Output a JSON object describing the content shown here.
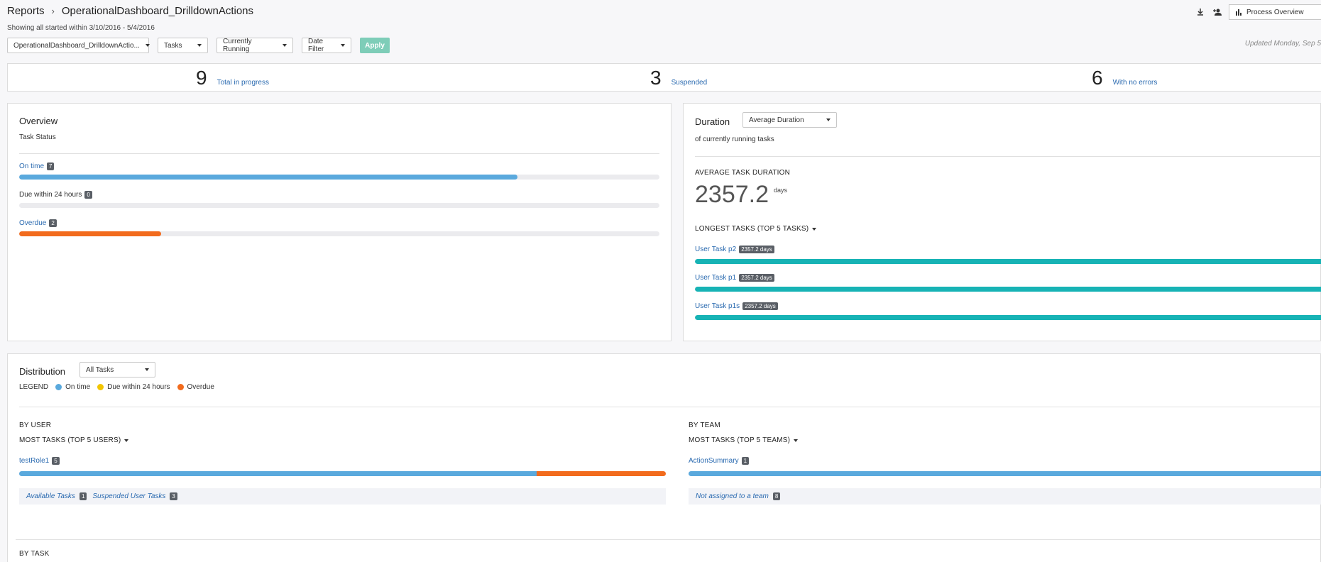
{
  "breadcrumb": {
    "root": "Reports",
    "current": "OperationalDashboard_DrilldownActions"
  },
  "subtitle": "Showing all started within 3/10/2016 - 5/4/2016",
  "filters": {
    "report": "OperationalDashboard_DrilldownActio...",
    "type": "Tasks",
    "state": "Currently Running",
    "date": "Date Filter",
    "apply": "Apply"
  },
  "updated": "Updated Monday, Sep 5",
  "top_actions": {
    "process_overview": "Process Overview"
  },
  "summary": [
    {
      "value": "9",
      "label": "Total in progress"
    },
    {
      "value": "3",
      "label": "Suspended"
    },
    {
      "value": "6",
      "label": "With no errors"
    }
  ],
  "overview": {
    "title": "Overview",
    "subtitle": "Task Status",
    "rows": [
      {
        "label": "On time",
        "count": "7",
        "fraction": 0.778,
        "color": "#5aa9dd"
      },
      {
        "label": "Due within 24 hours",
        "count": "0",
        "fraction": 0,
        "color": "#f2c500"
      },
      {
        "label": "Overdue",
        "count": "2",
        "fraction": 0.222,
        "color": "#f26b1d"
      }
    ]
  },
  "duration": {
    "title": "Duration",
    "select": "Average Duration",
    "subtitle": "of currently running tasks",
    "avg_caption": "AVERAGE TASK DURATION",
    "avg_value": "2357.2",
    "avg_unit": "days",
    "longest_caption": "LONGEST TASKS (TOP 5 TASKS)",
    "tasks": [
      {
        "label": "User Task p2",
        "badge": "2357.2 days",
        "fraction": 1
      },
      {
        "label": "User Task p1",
        "badge": "2357.2 days",
        "fraction": 1
      },
      {
        "label": "User Task p1s",
        "badge": "2357.2 days",
        "fraction": 1
      }
    ],
    "bar_color": "#17b3b5"
  },
  "distribution": {
    "title": "Distribution",
    "select": "All Tasks",
    "legend_label": "LEGEND",
    "legend": [
      {
        "label": "On time",
        "color": "#5aa9dd"
      },
      {
        "label": "Due within 24 hours",
        "color": "#f2c500"
      },
      {
        "label": "Overdue",
        "color": "#f26b1d"
      }
    ],
    "by_user": {
      "caption": "BY USER",
      "sort": "MOST TASKS (TOP 5 USERS)",
      "rows": [
        {
          "label": "testRole1",
          "count": "5",
          "on_time": 0.8,
          "overdue": 0.2
        }
      ],
      "strip": [
        {
          "label": "Available Tasks",
          "count": "1"
        },
        {
          "label": "Suspended User Tasks",
          "count": "3"
        }
      ]
    },
    "by_team": {
      "caption": "BY TEAM",
      "sort": "MOST TASKS (TOP 5 TEAMS)",
      "rows": [
        {
          "label": "ActionSummary",
          "count": "1",
          "on_time": 1,
          "overdue": 0
        }
      ],
      "strip": [
        {
          "label": "Not assigned to a team",
          "count": "8"
        }
      ]
    },
    "by_task": {
      "caption": "BY TASK"
    }
  }
}
